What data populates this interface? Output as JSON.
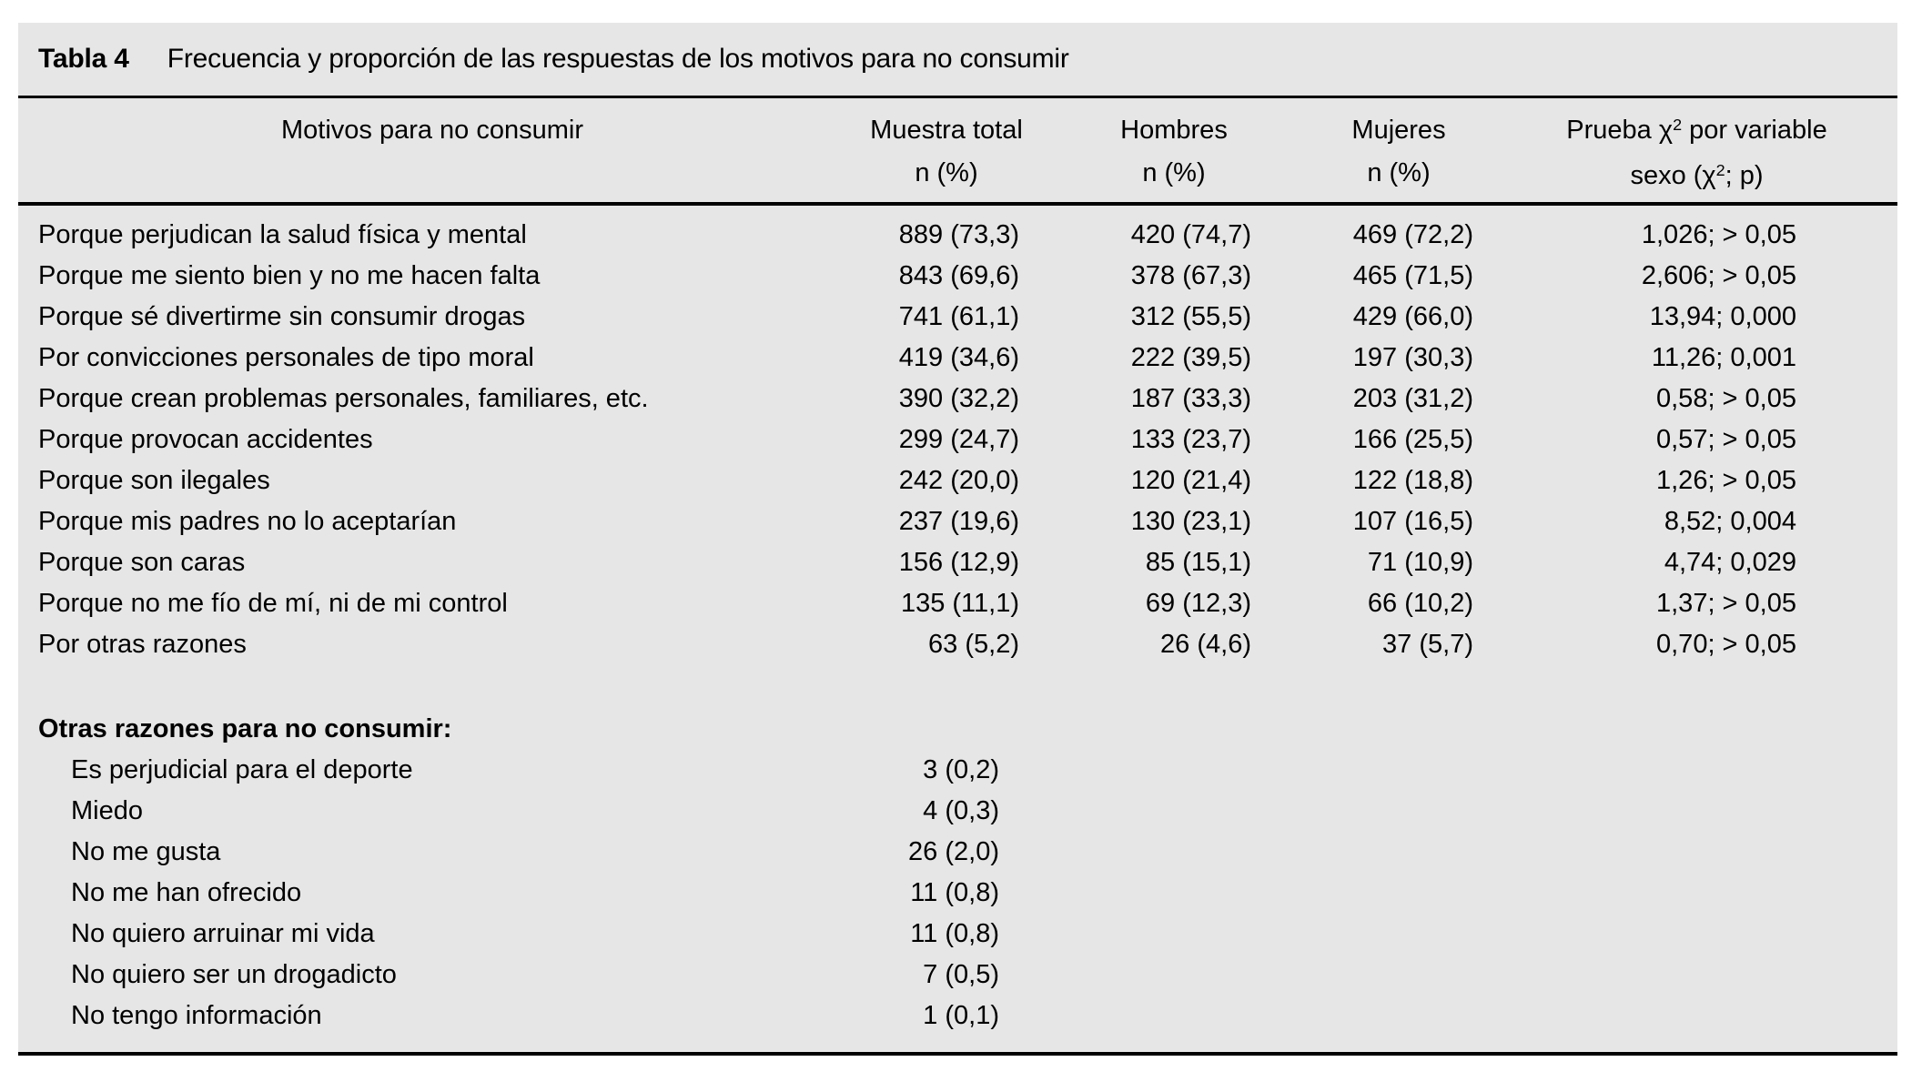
{
  "table": {
    "label": "Tabla 4",
    "caption": "Frecuencia y proporción de las respuestas de los motivos para no consumir",
    "header": {
      "motivo": "Motivos para no consumir",
      "muestra": [
        "Muestra total",
        "n (%)"
      ],
      "hombres": [
        "Hombres",
        "n (%)"
      ],
      "mujeres": [
        "Mujeres",
        "n (%)"
      ],
      "prueba_line1": [
        "Prueba ",
        "χ",
        "2",
        " por variable"
      ],
      "prueba_line2": [
        "sexo (",
        "χ",
        "2",
        "; p)"
      ]
    },
    "rows": [
      {
        "motivo": "Porque perjudican la salud física y mental",
        "muestra": "889 (73,3)",
        "hombres": "420 (74,7)",
        "mujeres": "469 (72,2)",
        "prueba": "1,026; > 0,05"
      },
      {
        "motivo": "Porque me siento bien y no me hacen falta",
        "muestra": "843 (69,6)",
        "hombres": "378 (67,3)",
        "mujeres": "465 (71,5)",
        "prueba": "2,606; > 0,05"
      },
      {
        "motivo": "Porque sé divertirme sin consumir drogas",
        "muestra": "741 (61,1)",
        "hombres": "312 (55,5)",
        "mujeres": "429 (66,0)",
        "prueba": "13,94; 0,000"
      },
      {
        "motivo": "Por convicciones personales de tipo moral",
        "muestra": "419 (34,6)",
        "hombres": "222 (39,5)",
        "mujeres": "197 (30,3)",
        "prueba": "11,26; 0,001"
      },
      {
        "motivo": "Porque crean problemas personales, familiares, etc.",
        "muestra": "390 (32,2)",
        "hombres": "187 (33,3)",
        "mujeres": "203 (31,2)",
        "prueba": "0,58; > 0,05"
      },
      {
        "motivo": "Porque provocan accidentes",
        "muestra": "299 (24,7)",
        "hombres": "133 (23,7)",
        "mujeres": "166 (25,5)",
        "prueba": "0,57; > 0,05"
      },
      {
        "motivo": "Porque son ilegales",
        "muestra": "242 (20,0)",
        "hombres": "120 (21,4)",
        "mujeres": "122 (18,8)",
        "prueba": "1,26; > 0,05"
      },
      {
        "motivo": "Porque mis padres no lo aceptarían",
        "muestra": "237 (19,6)",
        "hombres": "130 (23,1)",
        "mujeres": "107 (16,5)",
        "prueba": "8,52; 0,004"
      },
      {
        "motivo": "Porque son caras",
        "muestra": "156 (12,9)",
        "hombres": "85 (15,1)",
        "mujeres": "71 (10,9)",
        "prueba": "4,74; 0,029"
      },
      {
        "motivo": "Porque no me fío de mí, ni de mi control",
        "muestra": "135 (11,1)",
        "hombres": "69 (12,3)",
        "mujeres": "66 (10,2)",
        "prueba": "1,37; > 0,05"
      },
      {
        "motivo": "Por otras razones",
        "muestra": "63 (5,2)",
        "hombres": "26 (4,6)",
        "mujeres": "37 (5,7)",
        "prueba": "0,70; > 0,05"
      }
    ],
    "other_section": {
      "heading": "Otras razones para no consumir:",
      "rows": [
        {
          "motivo": "Es perjudicial para el deporte",
          "muestra": "3 (0,2)"
        },
        {
          "motivo": "Miedo",
          "muestra": "4 (0,3)"
        },
        {
          "motivo": "No me gusta",
          "muestra": "26 (2,0)"
        },
        {
          "motivo": "No me han ofrecido",
          "muestra": "11 (0,8)"
        },
        {
          "motivo": "No quiero arruinar mi vida",
          "muestra": "11 (0,8)"
        },
        {
          "motivo": "No quiero ser un drogadicto",
          "muestra": "7 (0,5)"
        },
        {
          "motivo": "No tengo información",
          "muestra": "1 (0,1)"
        }
      ]
    },
    "colors": {
      "panel_background": "#e6e6e6",
      "rule": "#000000",
      "text": "#000000"
    }
  }
}
